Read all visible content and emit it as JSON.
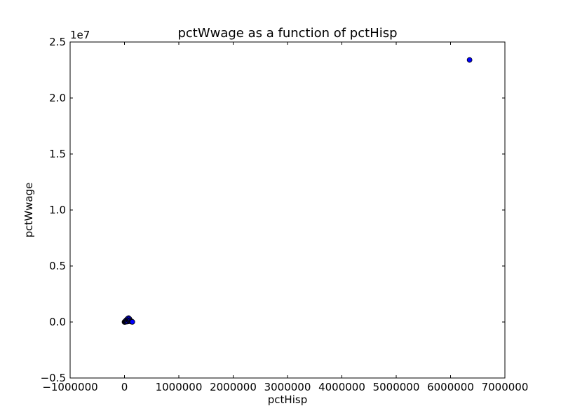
{
  "chart_data": {
    "type": "scatter",
    "title": "pctWwage as a function of pctHisp",
    "xlabel": "pctHisp",
    "ylabel": "pctWwage",
    "xlim": [
      -1000000,
      7000000
    ],
    "ylim": [
      -5000000,
      25000000
    ],
    "x_ticks": [
      -1000000,
      0,
      1000000,
      2000000,
      3000000,
      4000000,
      5000000,
      6000000,
      7000000
    ],
    "x_tick_labels": [
      "−1000000",
      "0",
      "1000000",
      "2000000",
      "3000000",
      "4000000",
      "5000000",
      "6000000",
      "7000000"
    ],
    "y_ticks": [
      -5000000,
      0,
      5000000,
      10000000,
      15000000,
      20000000,
      25000000
    ],
    "y_tick_labels": [
      "−0.5",
      "0.0",
      "0.5",
      "1.0",
      "1.5",
      "2.0",
      "2.5"
    ],
    "y_offset_label": "1e7",
    "grid": false,
    "marker_color": "#0000ff",
    "marker_edge": "#000000",
    "points": [
      {
        "x": 0,
        "y": 0
      },
      {
        "x": 5000,
        "y": 20000
      },
      {
        "x": 10000,
        "y": 40000
      },
      {
        "x": 15000,
        "y": 10000
      },
      {
        "x": 20000,
        "y": 60000
      },
      {
        "x": 25000,
        "y": 100000
      },
      {
        "x": 30000,
        "y": 150000
      },
      {
        "x": 35000,
        "y": 80000
      },
      {
        "x": 40000,
        "y": 200000
      },
      {
        "x": 45000,
        "y": 30000
      },
      {
        "x": 50000,
        "y": 120000
      },
      {
        "x": 55000,
        "y": 250000
      },
      {
        "x": 60000,
        "y": 300000
      },
      {
        "x": 65000,
        "y": 50000
      },
      {
        "x": 70000,
        "y": 180000
      },
      {
        "x": 75000,
        "y": 350000
      },
      {
        "x": 80000,
        "y": 220000
      },
      {
        "x": 85000,
        "y": 90000
      },
      {
        "x": 90000,
        "y": 280000
      },
      {
        "x": 95000,
        "y": 160000
      },
      {
        "x": 100000,
        "y": 70000
      },
      {
        "x": 110000,
        "y": 130000
      },
      {
        "x": 120000,
        "y": 40000
      },
      {
        "x": 130000,
        "y": 60000
      },
      {
        "x": 140000,
        "y": 20000
      },
      {
        "x": 145000,
        "y": 10000
      },
      {
        "x": 6350000,
        "y": 23400000
      }
    ]
  }
}
